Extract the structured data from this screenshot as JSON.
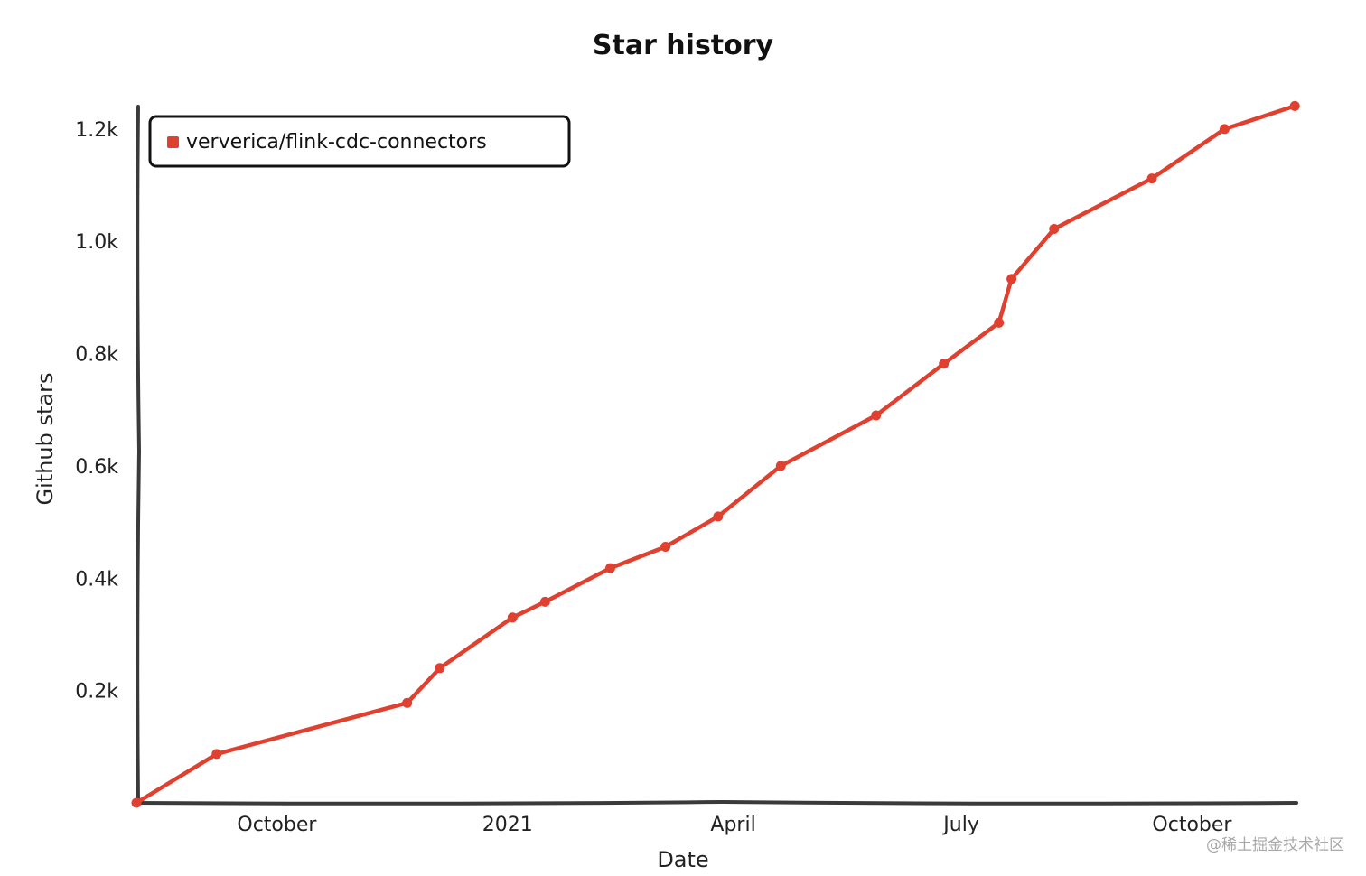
{
  "chart_data": {
    "type": "line",
    "title": "Star history",
    "xlabel": "Date",
    "ylabel": "Github stars",
    "x_ticks": [
      "2020-10-01",
      "2021-01-01",
      "2021-04-01",
      "2021-07-01",
      "2021-10-01"
    ],
    "x_tick_labels": [
      "October",
      "2021",
      "April",
      "July",
      "October"
    ],
    "xlim": [
      "2020-08-06",
      "2021-11-12"
    ],
    "y_ticks": [
      200,
      400,
      600,
      800,
      1000,
      1200
    ],
    "y_tick_labels": [
      "0.2k",
      "0.4k",
      "0.6k",
      "0.8k",
      "1.0k",
      "1.2k"
    ],
    "ylim": [
      0,
      1240
    ],
    "grid": false,
    "legend_position": "top-left",
    "series": [
      {
        "name": "ververica/flink-cdc-connectors",
        "color": "#e0402f",
        "points": [
          {
            "x": "2020-08-06",
            "y": 0
          },
          {
            "x": "2020-09-07",
            "y": 87
          },
          {
            "x": "2020-11-22",
            "y": 178
          },
          {
            "x": "2020-12-05",
            "y": 240
          },
          {
            "x": "2021-01-03",
            "y": 330
          },
          {
            "x": "2021-01-16",
            "y": 358
          },
          {
            "x": "2021-02-11",
            "y": 418
          },
          {
            "x": "2021-03-05",
            "y": 456
          },
          {
            "x": "2021-03-26",
            "y": 510
          },
          {
            "x": "2021-04-20",
            "y": 600
          },
          {
            "x": "2021-05-28",
            "y": 690
          },
          {
            "x": "2021-06-24",
            "y": 782
          },
          {
            "x": "2021-07-16",
            "y": 855
          },
          {
            "x": "2021-07-21",
            "y": 933
          },
          {
            "x": "2021-08-07",
            "y": 1022
          },
          {
            "x": "2021-09-15",
            "y": 1112
          },
          {
            "x": "2021-10-14",
            "y": 1200
          },
          {
            "x": "2021-11-11",
            "y": 1241
          }
        ]
      }
    ]
  },
  "watermark": "@稀土掘金技术社区"
}
